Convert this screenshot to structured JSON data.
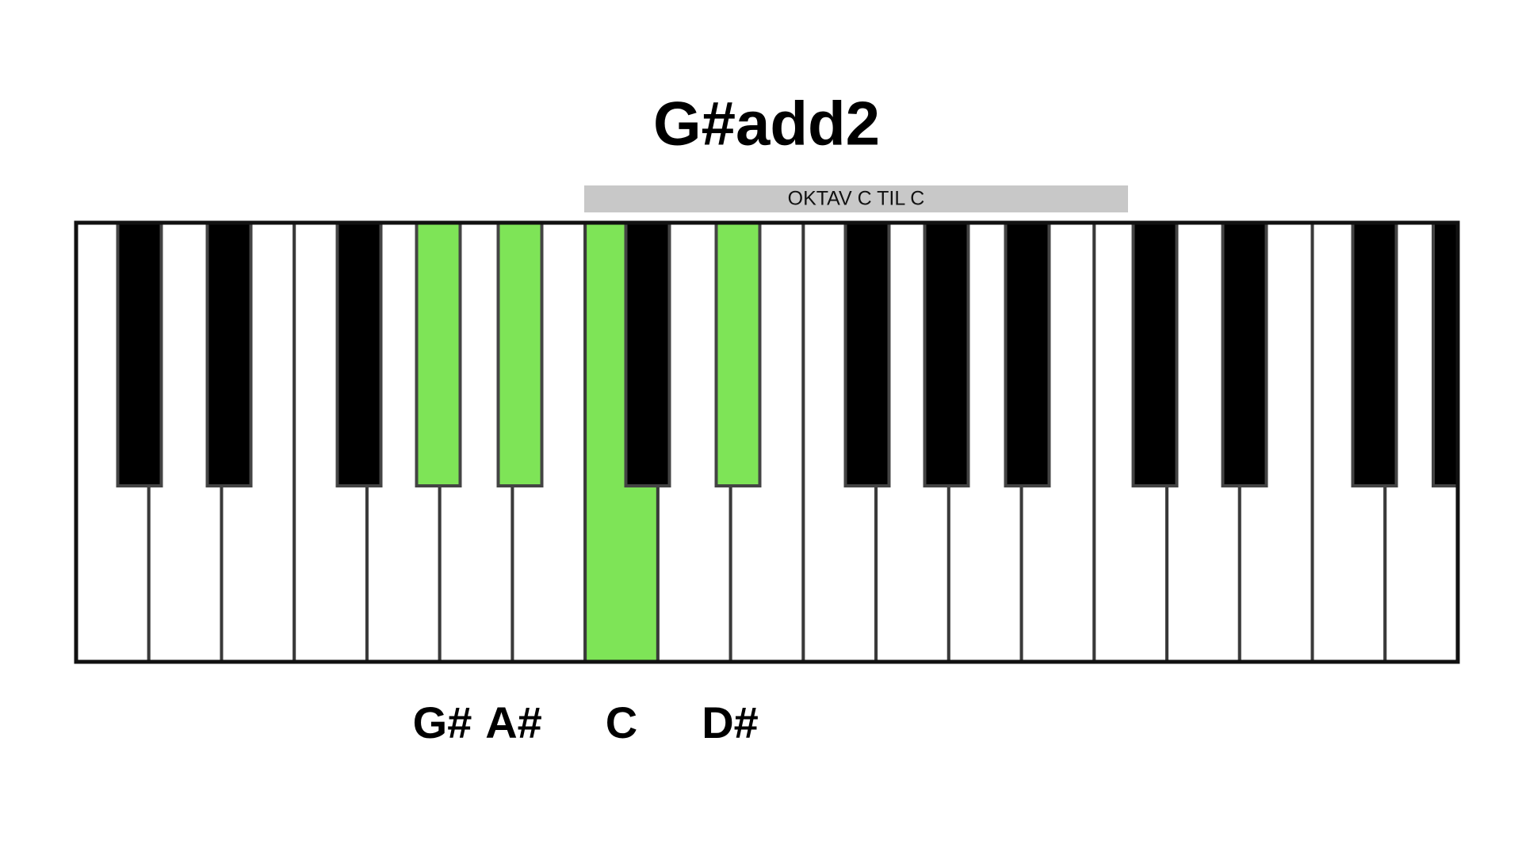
{
  "title": "G#add2",
  "octave_label": "OKTAV C TIL C",
  "notes": [
    "G#",
    "A#",
    "C",
    "D#"
  ]
}
